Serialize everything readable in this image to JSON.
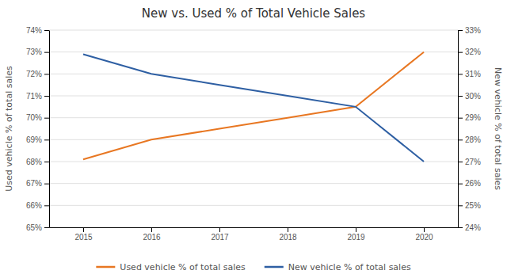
{
  "chart_data": {
    "type": "line",
    "title": "New vs. Used % of Total Vehicle Sales",
    "x": [
      2015,
      2016,
      2017,
      2018,
      2019,
      2020
    ],
    "xlim": [
      2014.5,
      2020.5
    ],
    "xticks": [
      2015,
      2016,
      2017,
      2018,
      2019,
      2020
    ],
    "series": [
      {
        "name": "Used vehicle % of total sales",
        "color": "#E87722",
        "values": [
          0.681,
          0.69,
          0.695,
          0.7,
          0.705,
          0.73
        ]
      },
      {
        "name": "New vehicle % of total sales",
        "color": "#2E5FA3",
        "axis": "y2",
        "values": [
          0.319,
          0.31,
          0.305,
          0.3,
          0.295,
          0.27
        ]
      }
    ],
    "ylabel": "Used vehicle % of total sales",
    "y2label": "New vehicle % of total sales",
    "ylim": [
      0.65,
      0.74
    ],
    "yticks": [
      {
        "value": 0.65,
        "label": "65%"
      },
      {
        "value": 0.66,
        "label": "66%"
      },
      {
        "value": 0.67,
        "label": "67%"
      },
      {
        "value": 0.68,
        "label": "68%"
      },
      {
        "value": 0.69,
        "label": "69%"
      },
      {
        "value": 0.7,
        "label": "70%"
      },
      {
        "value": 0.71,
        "label": "71%"
      },
      {
        "value": 0.72,
        "label": "72%"
      },
      {
        "value": 0.73,
        "label": "73%"
      },
      {
        "value": 0.74,
        "label": "74%"
      }
    ],
    "y2lim": [
      0.24,
      0.33
    ],
    "y2ticks": [
      {
        "value": 0.24,
        "label": "24%"
      },
      {
        "value": 0.25,
        "label": "25%"
      },
      {
        "value": 0.26,
        "label": "26%"
      },
      {
        "value": 0.27,
        "label": "27%"
      },
      {
        "value": 0.28,
        "label": "28%"
      },
      {
        "value": 0.29,
        "label": "29%"
      },
      {
        "value": 0.3,
        "label": "30%"
      },
      {
        "value": 0.31,
        "label": "31%"
      },
      {
        "value": 0.32,
        "label": "32%"
      },
      {
        "value": 0.33,
        "label": "33%"
      }
    ],
    "grid": true,
    "legend": "bottom"
  }
}
